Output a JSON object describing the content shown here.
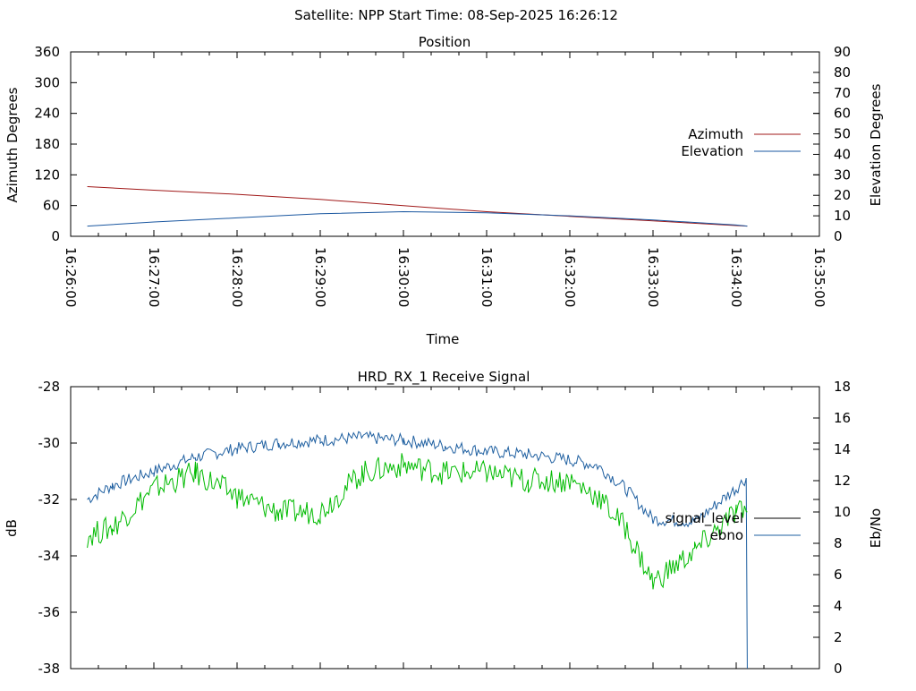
{
  "header": "Satellite: NPP    Start Time: 08-Sep-2025 16:26:12",
  "colors": {
    "azimuth": "#a01818",
    "elevation": "#1a57a0",
    "ebno": "#00bb00",
    "signal_level": "#1e5fa0",
    "legend_signal": "#000000",
    "axis": "#000000"
  },
  "chart_data": [
    {
      "type": "line",
      "title": "Position",
      "xlabel": "Time",
      "ylabel_left": "Azimuth Degrees",
      "ylabel_right": "Elevation Degrees",
      "x_ticks": [
        "16:26:00",
        "16:27:00",
        "16:28:00",
        "16:29:00",
        "16:30:00",
        "16:31:00",
        "16:32:00",
        "16:33:00",
        "16:34:00",
        "16:35:00"
      ],
      "xlim": [
        "16:26:00",
        "16:35:00"
      ],
      "ylim_left": [
        0,
        360
      ],
      "yticks_left": [
        0,
        60,
        120,
        180,
        240,
        300,
        360
      ],
      "ylim_right": [
        0,
        90
      ],
      "yticks_right": [
        0,
        10,
        20,
        30,
        40,
        50,
        60,
        70,
        80,
        90
      ],
      "legend_position": "right",
      "grid": false,
      "series": [
        {
          "name": "Azimuth",
          "axis": "left",
          "color": "#a01818",
          "x": [
            "16:26:12",
            "16:27:00",
            "16:28:00",
            "16:29:00",
            "16:30:00",
            "16:31:00",
            "16:32:00",
            "16:33:00",
            "16:34:00",
            "16:34:08"
          ],
          "values": [
            97,
            90,
            82,
            72,
            60,
            48,
            39,
            30,
            21,
            20
          ]
        },
        {
          "name": "Elevation",
          "axis": "right",
          "color": "#1a57a0",
          "x": [
            "16:26:12",
            "16:27:00",
            "16:28:00",
            "16:29:00",
            "16:30:00",
            "16:31:00",
            "16:32:00",
            "16:33:00",
            "16:34:00",
            "16:34:08"
          ],
          "values": [
            5,
            7,
            9,
            11,
            12,
            11.5,
            10,
            8,
            5.5,
            5
          ]
        }
      ]
    },
    {
      "type": "line",
      "title": "HRD_RX_1 Receive Signal",
      "xlabel": "",
      "ylabel_left": "dB",
      "ylabel_right": "Eb/No",
      "xlim": [
        "16:26:00",
        "16:35:00"
      ],
      "ylim_left": [
        -38,
        -28
      ],
      "yticks_left": [
        -38,
        -36,
        -34,
        -32,
        -30,
        -28
      ],
      "ylim_right": [
        0,
        18
      ],
      "yticks_right": [
        0,
        2,
        4,
        6,
        8,
        10,
        12,
        14,
        16,
        18
      ],
      "legend_position": "right",
      "grid": false,
      "series": [
        {
          "name": "signal_level",
          "axis": "left",
          "color": "#1e5fa0",
          "x": [
            "16:26:12",
            "16:26:30",
            "16:27:00",
            "16:27:30",
            "16:28:00",
            "16:28:30",
            "16:29:00",
            "16:29:30",
            "16:30:00",
            "16:30:30",
            "16:31:00",
            "16:31:30",
            "16:32:00",
            "16:32:20",
            "16:32:40",
            "16:33:00",
            "16:33:30",
            "16:34:00",
            "16:34:08",
            "16:34:08"
          ],
          "values": [
            -32.0,
            -31.5,
            -31.0,
            -30.5,
            -30.2,
            -30.0,
            -29.9,
            -29.8,
            -29.9,
            -30.1,
            -30.3,
            -30.4,
            -30.6,
            -30.8,
            -31.6,
            -32.7,
            -32.8,
            -31.6,
            -31.2,
            -38.0
          ]
        },
        {
          "name": "ebno",
          "axis": "right",
          "color": "#00bb00",
          "x": [
            "16:26:12",
            "16:26:30",
            "16:27:00",
            "16:27:30",
            "16:28:00",
            "16:28:30",
            "16:29:00",
            "16:29:30",
            "16:30:00",
            "16:30:30",
            "16:31:00",
            "16:31:30",
            "16:32:00",
            "16:32:20",
            "16:32:40",
            "16:33:00",
            "16:33:30",
            "16:34:00",
            "16:34:08"
          ],
          "values": [
            8.5,
            9.0,
            11.5,
            12.5,
            11.0,
            10.0,
            10.0,
            12.5,
            13.0,
            12.5,
            12.5,
            12.0,
            12.0,
            11.0,
            9.0,
            5.5,
            7.5,
            10.0,
            10.0
          ]
        }
      ]
    }
  ]
}
